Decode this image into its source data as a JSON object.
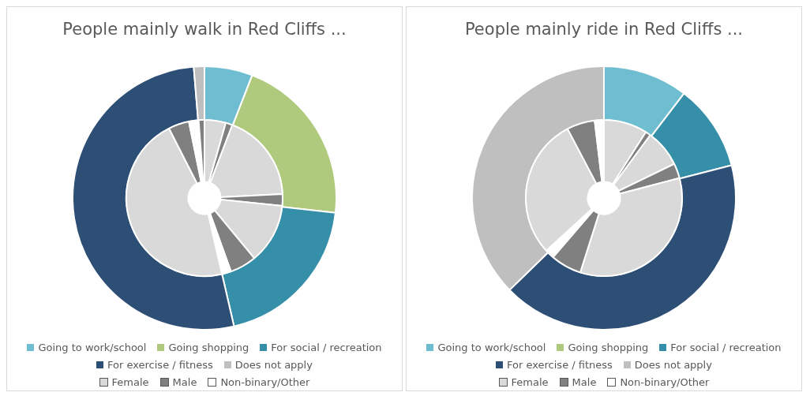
{
  "chart_data": [
    {
      "type": "donut",
      "title": "People mainly walk in Red Cliffs ...",
      "legend": "bottom",
      "categories": [
        "Going to work/school",
        "Going shopping",
        "For social / recreation",
        "For exercise / fitness",
        "Does not apply"
      ],
      "values": [
        5.9,
        20.9,
        19.6,
        52.3,
        1.3
      ],
      "colors": [
        "#6fbdd0",
        "#afca7c",
        "#368fa8",
        "#2d4e75",
        "#bfbfbf"
      ]
    },
    {
      "type": "donut",
      "legend": "bottom",
      "categories": [
        "Female",
        "Male",
        "Non-binary/Other",
        null,
        null,
        null,
        null,
        null,
        null,
        null,
        null,
        null,
        null,
        null,
        null
      ],
      "values": [
        4.4,
        1.4,
        0,
        18.4,
        2.4,
        0,
        12.4,
        5.5,
        1.9,
        46.1,
        4.3,
        2.0,
        0,
        1.2,
        0
      ],
      "colors": [
        "#d9d9d9",
        "#808080",
        "#ffffff",
        "#d9d9d9",
        "#808080",
        "#ffffff",
        "#d9d9d9",
        "#808080",
        "#ffffff",
        "#d9d9d9",
        "#808080",
        "#ffffff",
        "#d9d9d9",
        "#808080",
        "#ffffff"
      ]
    },
    {
      "type": "donut",
      "title": "People mainly ride in Red Cliffs ...",
      "legend": "bottom",
      "categories": [
        "Going to work/school",
        "Going shopping",
        "For social / recreation",
        "For exercise / fitness",
        "Does not apply"
      ],
      "values": [
        10.4,
        0,
        10.6,
        41.7,
        37.3
      ],
      "colors": [
        "#6fbdd0",
        "#afca7c",
        "#368fa8",
        "#2d4e75",
        "#bfbfbf"
      ]
    },
    {
      "type": "donut",
      "legend": "bottom",
      "categories": [
        "Female",
        "Male",
        "Non-binary/Other",
        null,
        null,
        null,
        null,
        null,
        null,
        null,
        null,
        null,
        null,
        null,
        null
      ],
      "values": [
        9.0,
        1.1,
        0,
        0,
        0,
        0,
        7.7,
        3.1,
        0,
        34.0,
        6.4,
        1.9,
        29.1,
        5.8,
        1.9
      ],
      "colors": [
        "#d9d9d9",
        "#808080",
        "#ffffff",
        "#d9d9d9",
        "#808080",
        "#ffffff",
        "#d9d9d9",
        "#808080",
        "#ffffff",
        "#d9d9d9",
        "#808080",
        "#ffffff",
        "#d9d9d9",
        "#808080",
        "#ffffff"
      ]
    }
  ]
}
